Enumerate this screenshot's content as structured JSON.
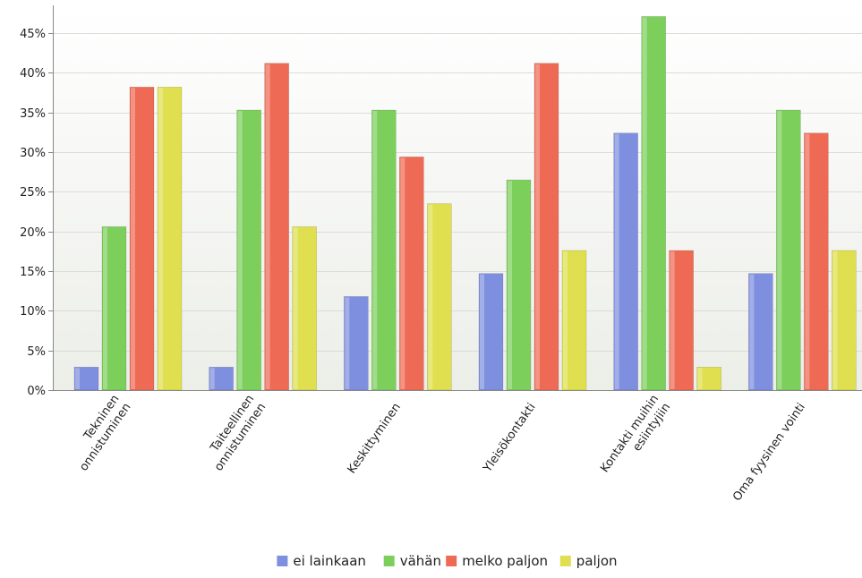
{
  "chart_data": {
    "type": "bar",
    "categories": [
      [
        "Tekninen",
        "onnistuminen"
      ],
      [
        "Taiteellinen",
        "onnistuminen"
      ],
      [
        "Keskittyminen"
      ],
      [
        "Yleisökontakti"
      ],
      [
        "Kontakti muihin",
        "esiintyjiin"
      ],
      [
        "Oma fyysinen vointi"
      ]
    ],
    "series": [
      {
        "name": "ei lainkaan",
        "color": "#7f8fdf",
        "values": [
          2.9,
          2.9,
          11.8,
          14.7,
          32.4,
          14.7
        ]
      },
      {
        "name": "vähän",
        "color": "#7dcf5c",
        "values": [
          20.6,
          35.3,
          35.3,
          26.5,
          47.1,
          35.3
        ]
      },
      {
        "name": "melko paljon",
        "color": "#ef6a55",
        "values": [
          38.2,
          41.2,
          29.4,
          41.2,
          17.6,
          32.4
        ]
      },
      {
        "name": "paljon",
        "color": "#dfdf4f",
        "values": [
          38.2,
          20.6,
          23.5,
          17.6,
          2.9,
          17.6
        ]
      }
    ],
    "yticks": [
      0,
      5,
      10,
      15,
      20,
      25,
      30,
      35,
      40,
      45
    ],
    "ytick_labels": [
      "0%",
      "5%",
      "10%",
      "15%",
      "20%",
      "25%",
      "30%",
      "35%",
      "40%",
      "45%"
    ],
    "ylim": [
      0,
      48.5
    ],
    "grid": true,
    "legend_position": "bottom-center",
    "title": "",
    "xlabel": "",
    "ylabel": ""
  }
}
